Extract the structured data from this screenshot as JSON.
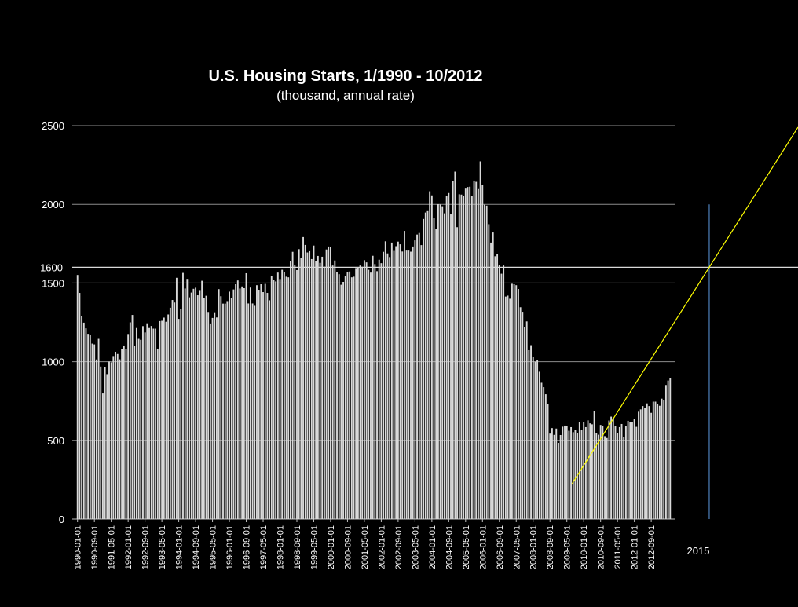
{
  "chart_data": {
    "type": "bar",
    "title": "U.S. Housing Starts, 1/1990 - 10/2012",
    "subtitle": "(thousand, annual rate)",
    "x_start": "1990-01",
    "x_end": "2012-10",
    "ylim": [
      0,
      2500
    ],
    "y_ticks": [
      0,
      500,
      1000,
      1500,
      2000,
      2500
    ],
    "grid": true,
    "bar_color": "#d9d9d9",
    "background": "#000000",
    "x_tick_labels": [
      "1990-01-01",
      "1990-09-01",
      "1991-05-01",
      "1992-01-01",
      "1992-09-01",
      "1993-05-01",
      "1994-01-01",
      "1994-09-01",
      "1995-05-01",
      "1996-01-01",
      "1996-09-01",
      "1997-05-01",
      "1998-01-01",
      "1998-09-01",
      "1999-05-01",
      "2000-01-01",
      "2000-09-01",
      "2001-05-01",
      "2002-01-01",
      "2002-09-01",
      "2003-05-01",
      "2004-01-01",
      "2004-09-01",
      "2005-05-01",
      "2006-01-01",
      "2006-09-01",
      "2007-05-01",
      "2008-01-01",
      "2008-09-01",
      "2009-05-01",
      "2010-01-01",
      "2010-09-01",
      "2011-05-01",
      "2012-01-01",
      "2012-09-01"
    ],
    "values": [
      1551,
      1437,
      1289,
      1248,
      1212,
      1177,
      1171,
      1115,
      1110,
      1014,
      1145,
      969,
      798,
      965,
      921,
      1001,
      996,
      1036,
      1063,
      1049,
      1015,
      1079,
      1103,
      1079,
      1176,
      1250,
      1297,
      1099,
      1214,
      1145,
      1139,
      1226,
      1186,
      1244,
      1214,
      1227,
      1210,
      1210,
      1083,
      1258,
      1260,
      1280,
      1254,
      1300,
      1343,
      1392,
      1376,
      1533,
      1272,
      1337,
      1564,
      1465,
      1526,
      1409,
      1439,
      1463,
      1470,
      1422,
      1455,
      1514,
      1407,
      1419,
      1316,
      1243,
      1278,
      1314,
      1281,
      1461,
      1416,
      1369,
      1369,
      1385,
      1445,
      1407,
      1459,
      1492,
      1516,
      1465,
      1478,
      1467,
      1562,
      1370,
      1471,
      1370,
      1355,
      1486,
      1457,
      1492,
      1442,
      1494,
      1437,
      1390,
      1546,
      1520,
      1510,
      1566,
      1525,
      1584,
      1567,
      1540,
      1536,
      1641,
      1698,
      1614,
      1582,
      1715,
      1660,
      1792,
      1742,
      1694,
      1702,
      1652,
      1738,
      1637,
      1672,
      1628,
      1667,
      1604,
      1713,
      1732,
      1727,
      1611,
      1643,
      1568,
      1556,
      1489,
      1507,
      1543,
      1570,
      1573,
      1536,
      1540,
      1595,
      1600,
      1611,
      1603,
      1645,
      1631,
      1584,
      1566,
      1673,
      1620,
      1575,
      1648,
      1626,
      1698,
      1765,
      1688,
      1665,
      1757,
      1704,
      1734,
      1763,
      1746,
      1700,
      1831,
      1706,
      1706,
      1699,
      1732,
      1771,
      1808,
      1818,
      1741,
      1907,
      1948,
      1957,
      2083,
      2057,
      1911,
      1846,
      2001,
      1999,
      1988,
      1943,
      2056,
      2072,
      1936,
      2149,
      2208,
      1855,
      2064,
      2062,
      2052,
      2100,
      2110,
      2112,
      2052,
      2151,
      2143,
      2097,
      2273,
      2122,
      1998,
      1992,
      1874,
      1757,
      1821,
      1670,
      1686,
      1614,
      1559,
      1611,
      1414,
      1420,
      1400,
      1495,
      1492,
      1486,
      1462,
      1346,
      1317,
      1222,
      1256,
      1073,
      1105,
      1030,
      1000,
      1009,
      936,
      866,
      838,
      793,
      731,
      543,
      578,
      535,
      575,
      484,
      534,
      587,
      594,
      592,
      561,
      584,
      552,
      567,
      547,
      618,
      565,
      617,
      584,
      627,
      608,
      602,
      686,
      546,
      536,
      598,
      592,
      527,
      515,
      626,
      651,
      641,
      590,
      544,
      584,
      604,
      519,
      589,
      624,
      617,
      616,
      638,
      586,
      682,
      697,
      718,
      706,
      735,
      718,
      675,
      746,
      746,
      732,
      720,
      765,
      757,
      852,
      880,
      894
    ]
  },
  "overlay": {
    "reference_value": 1600,
    "reference_label": "1600",
    "year_marker_label": "2015",
    "trend_color": "#ffff00",
    "marker_color": "#4f81bd"
  }
}
